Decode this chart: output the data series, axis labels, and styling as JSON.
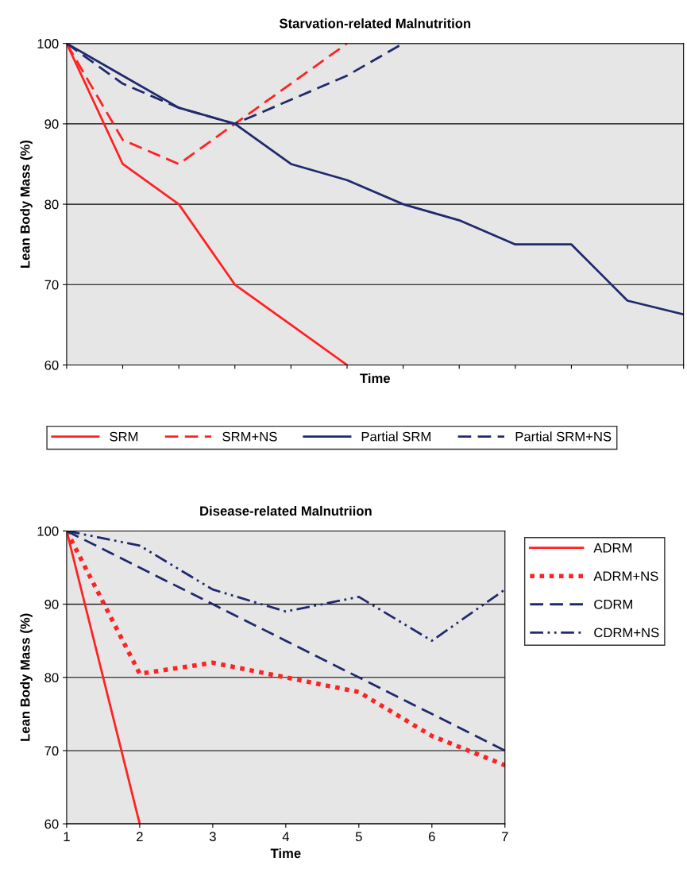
{
  "chart_data": [
    {
      "type": "line",
      "title": "Starvation-related Malnutrition",
      "xlabel": "Time",
      "ylabel": "Lean Body Mass (%)",
      "categories": [
        null,
        null,
        null,
        null,
        null,
        null,
        null,
        null,
        null,
        null,
        null,
        null
      ],
      "ylim": [
        60,
        100
      ],
      "yticks": [
        60,
        70,
        80,
        90,
        100
      ],
      "grid": "y",
      "legend": "bottom",
      "tick_labels": "y",
      "marker": "none",
      "series": [
        {
          "name": "SRM",
          "color": "#ff2222",
          "line_style": "solid",
          "values": [
            100,
            85,
            80,
            70,
            65,
            60,
            null,
            null,
            null,
            null,
            null,
            null
          ]
        },
        {
          "name": "SRM+NS",
          "color": "#ff2222",
          "line_style": "dashed",
          "values": [
            100,
            88,
            85,
            90,
            95,
            100,
            null,
            null,
            null,
            null,
            null,
            null
          ]
        },
        {
          "name": "Partial SRM",
          "color": "#1f2a6e",
          "line_style": "solid",
          "values": [
            100,
            96,
            92,
            90,
            85,
            83,
            80,
            78,
            75,
            75,
            68,
            66.3
          ]
        },
        {
          "name": "Partial SRM+NS",
          "color": "#1f2a6e",
          "line_style": "dashed",
          "values": [
            100,
            95,
            92,
            90,
            93,
            96,
            100,
            null,
            null,
            null,
            null,
            null
          ]
        }
      ]
    },
    {
      "type": "line",
      "title": "Disease-related Malnutriion",
      "xlabel": "Time",
      "ylabel": "Lean Body Mass (%)",
      "x": [
        1,
        2,
        3,
        4,
        5,
        6,
        7
      ],
      "xlim": [
        1,
        7
      ],
      "xticks": [
        1,
        2,
        3,
        4,
        5,
        6,
        7
      ],
      "ylim": [
        60,
        100
      ],
      "yticks": [
        60,
        70,
        80,
        90,
        100
      ],
      "grid": "y",
      "legend": "right",
      "marker": "none",
      "series": [
        {
          "name": "ADRM",
          "color": "#ff2222",
          "line_style": "solid",
          "values": [
            100,
            60,
            null,
            null,
            null,
            null,
            null
          ]
        },
        {
          "name": "ADRM+NS",
          "color": "#ff2222",
          "line_style": "dotted",
          "values": [
            100,
            80.5,
            82,
            80,
            78,
            72,
            68
          ]
        },
        {
          "name": "CDRM",
          "color": "#1f2a6e",
          "line_style": "dashed",
          "values": [
            100,
            95,
            90,
            85,
            80,
            75,
            70
          ]
        },
        {
          "name": "CDRM+NS",
          "color": "#1f2a6e",
          "line_style": "dashdot",
          "values": [
            100,
            98,
            92,
            89,
            91,
            85,
            92
          ]
        }
      ]
    }
  ]
}
